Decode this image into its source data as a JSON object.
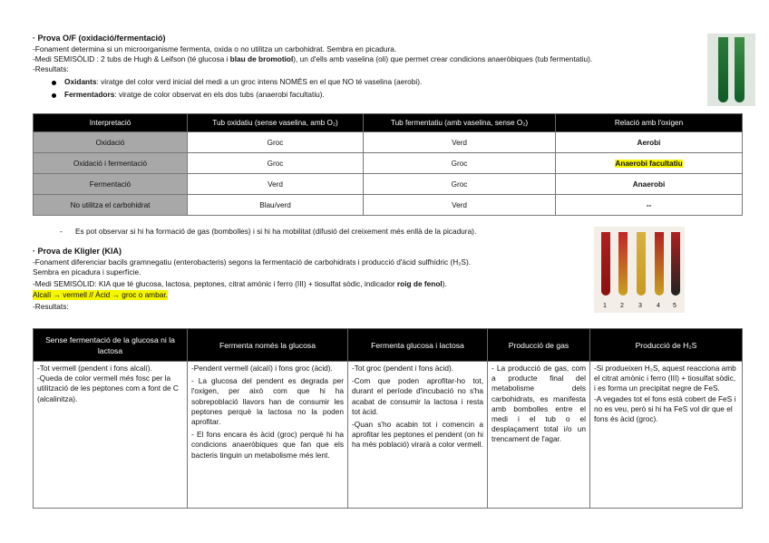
{
  "of": {
    "title": "· Prova O/F (oxidació/fermentació)",
    "fonament": "-Fonament determina si un microorganisme fermenta, oxida o no utilitza un carbohidrat. Sembra en picadura.",
    "medi_a": "-Medi SEMISÒLID : 2 tubs de Hugh & Leifson (té glucosa i ",
    "medi_bold": "blau de bromotiol",
    "medi_b": "), un d'ells amb vaselina (oli) que permet crear condicions anaeròbiques (tub fermentatiu).",
    "resultats": "-Resultats:",
    "bullets": [
      {
        "bold": "Oxidants",
        "text": ": viratge del color verd inicial del medi a un groc intens NOMÉS en el que NO té vaselina (aerobi)."
      },
      {
        "bold": "Fermentadors",
        "text": ": viratge de color observat en els dos tubs (anaerobi facultatiu)."
      }
    ],
    "table": {
      "headers": [
        "Interpretació",
        "Tub oxidatiu (sense vaselina, amb O₂)",
        "Tub fermentatiu (amb vaselina, sense O₂)",
        "Relació amb l'oxigen"
      ],
      "rows": [
        [
          "Oxidació",
          "Groc",
          "Verd",
          "Aerobi"
        ],
        [
          "Oxidació i fermentació",
          "Groc",
          "Groc",
          "Anaerobi facultatiu"
        ],
        [
          "Fermentació",
          "Verd",
          "Groc",
          "Anaerobi"
        ],
        [
          "No utilitza el carbohidrat",
          "Blau/verd",
          "Verd",
          "--"
        ]
      ]
    },
    "note": "Es pot observar si hi ha formació de gas (bombolles) i si hi ha mobilitat (difusió del creixement més enllà de la picadura)."
  },
  "kia": {
    "title": "· Prova de Kligler (KIA)",
    "fonament": "-Fonament diferenciar bacils gramnegatiu (enterobacteris) segons la fermentació de carbohidrats i producció d'àcid sulfhídric (H₂S).",
    "sembra": "Sembra en picadura i superfície.",
    "medi_a": "-Medi SEMISÒLID: KIA que té glucosa, lactosa, peptones, citrat amònic i ferro (III) + tiosulfat sòdic, indicador ",
    "medi_bold": "roig de fenol",
    "medi_b": ").",
    "highlight": "Alcalí → vermell // Àcid → groc o ambar.",
    "resultats": "-Resultats:",
    "tube_labels": [
      "1",
      "2",
      "3",
      "4",
      "5"
    ],
    "table": {
      "headers": [
        "Sense fermentació de la glucosa ni la lactosa",
        "Fermenta només la glucosa",
        "Fermenta glucosa i lactosa",
        "Producció de gas",
        "Producció de H₂S"
      ],
      "cells": [
        [
          "-Tot vermell (pendent i fons alcalí).",
          "-Queda de color vermell més fosc per la utilització de les peptones com a font de C (alcalinitza)."
        ],
        [
          "-Pendent vermell (alcalí) i fons groc (àcid).",
          "- La glucosa del pendent es degrada per l'oxigen, per això com que hi ha sobrepoblació llavors han de consumir les peptones perquè la lactosa no la poden aprofitar.",
          "- El fons encara és àcid (groc) perquè hi ha condicions anaeròbiques que fan que els bacteris tinguin un metabolisme més lent."
        ],
        [
          "-Tot groc (pendent i fons àcid).",
          "-Com que poden aprofitar-ho tot, durant el període d'incubació no s'ha acabat de consumir la lactosa i resta tot àcid.",
          "-Quan s'ho acabin tot i comencin a aprofitar les peptones el pendent (on hi ha més població) virarà a color vermell."
        ],
        [
          "- La producció de gas, com a producte final del metabolisme dels carbohidrats, es manifesta amb bombolles entre el medi i el tub o el desplaçament total i/o un trencament de l'agar."
        ],
        [
          "-Si produeixen H₂S, aquest reacciona amb el citrat amònic i ferro (III) + tiosulfat sòdic, i es forma un precipitat negre de FeS.",
          "-A vegades tot el fons està cobert de FeS i no es veu, però si hi ha FeS vol dir que el fons és àcid (groc)."
        ]
      ]
    }
  },
  "colors": {
    "highlight": "#f5f500",
    "header_bg": "#000000",
    "label_bg": "#a8a8a8"
  }
}
